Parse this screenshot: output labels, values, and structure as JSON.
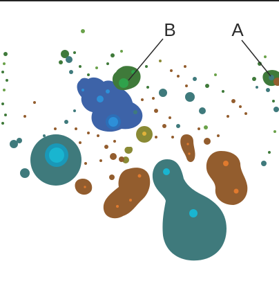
{
  "labels": {
    "a": "A",
    "b": "B"
  },
  "colors": {
    "teal": "#3f7a7c",
    "cyan": "#19b5d0",
    "brown": "#935d2e",
    "brown_dot": "#e07a2e",
    "blue": "#3d63a8",
    "blue_dot": "#2d8fd8",
    "green": "#3f7a3a",
    "bright_green": "#2fa24b",
    "olive": "#8a8a35",
    "olive_dot": "#e0b23a"
  }
}
